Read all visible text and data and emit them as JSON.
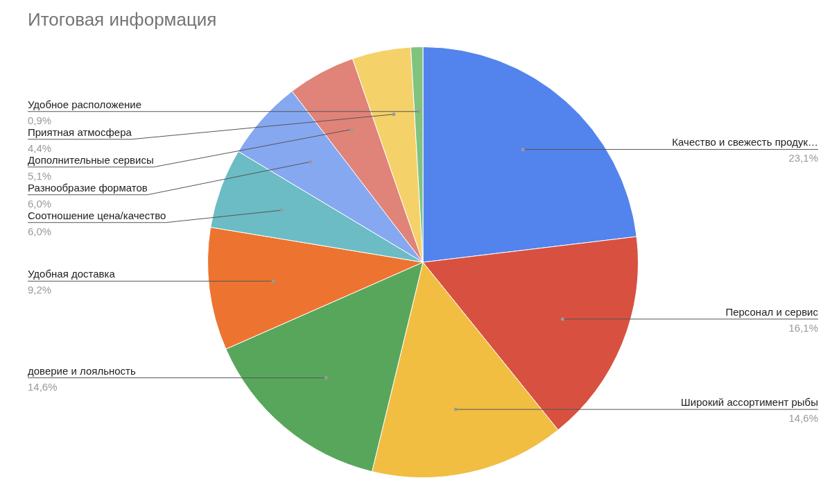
{
  "chart_data": {
    "type": "pie",
    "title": "Итоговая информация",
    "categories": [
      "Качество и свежесть продук…",
      "Персонал и сервис",
      "Широкий ассортимент рыбы",
      "доверие и лояльность",
      "Удобная доставка",
      "Соотношение цена/качество",
      "Разнообразие форматов",
      "Дополнительные сервисы",
      "Приятная атмосфера",
      "Удобное расположение"
    ],
    "values": [
      23.1,
      16.1,
      14.6,
      14.6,
      9.2,
      6.0,
      6.0,
      5.1,
      4.4,
      0.9
    ],
    "value_labels": [
      "23,1%",
      "16,1%",
      "14,6%",
      "14,6%",
      "9,2%",
      "6,0%",
      "6,0%",
      "5,1%",
      "4,4%",
      "0,9%"
    ],
    "colors": [
      "#5383ec",
      "#d85140",
      "#f1be42",
      "#58a65c",
      "#ed7430",
      "#6bbcc4",
      "#86a8f0",
      "#e08378",
      "#f5d16a",
      "#7fc37f"
    ]
  }
}
